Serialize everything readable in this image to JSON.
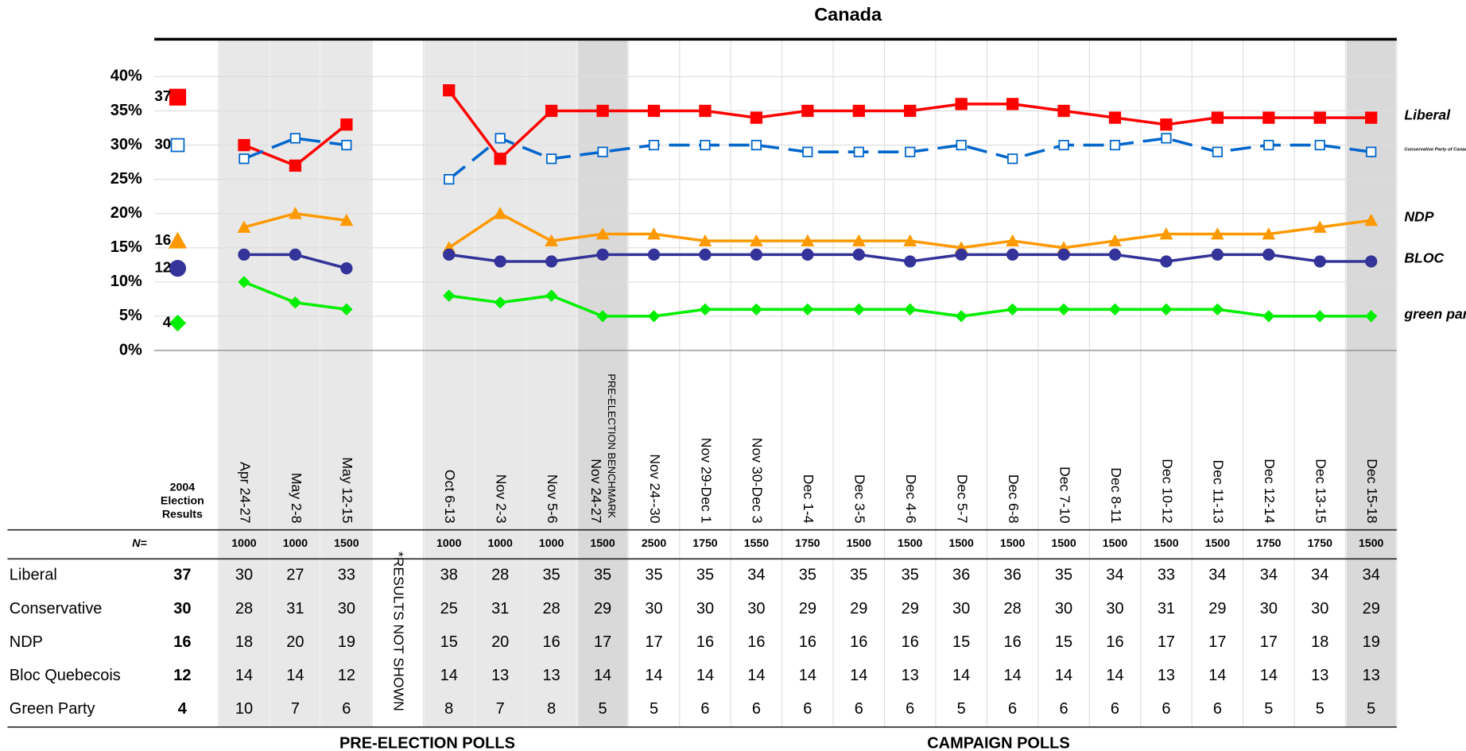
{
  "chart_data": {
    "type": "line",
    "title": "Canada",
    "categories": [
      "Apr 24-27",
      "May 2-8",
      "May 12-15",
      null,
      "Oct 6-13",
      "Nov 2-3",
      "Nov 5-6",
      "Nov 24-27",
      "Nov 24--30",
      "Nov 29-Dec 1",
      "Nov 30-Dec 3",
      "Dec 1-4",
      "Dec 3-5",
      "Dec 4-6",
      "Dec 5-7",
      "Dec 6-8",
      "Dec 7-10",
      "Dec 8-11",
      "Dec 10-12",
      "Dec 11-13",
      "Dec 12-14",
      "Dec 13-15",
      "Dec 15-18"
    ],
    "benchmark_note": "PRE-ELECTION BENCHMARK",
    "gap_note": "*RESULTS NOT SHOWN",
    "election_label": [
      "2004",
      "Election",
      "Results"
    ],
    "n_label": "N=",
    "n": [
      1000,
      1000,
      1500,
      null,
      1000,
      1000,
      1000,
      1500,
      2500,
      1750,
      1550,
      1750,
      1500,
      1500,
      1500,
      1500,
      1500,
      1500,
      1500,
      1500,
      1750,
      1750,
      1500
    ],
    "ylim": [
      0,
      40
    ],
    "yticks": [
      {
        "value": 0,
        "label": "0%"
      },
      {
        "value": 5,
        "label": "5%"
      },
      {
        "value": 10,
        "label": "10%"
      },
      {
        "value": 15,
        "label": "15%"
      },
      {
        "value": 20,
        "label": "20%"
      },
      {
        "value": 25,
        "label": "25%"
      },
      {
        "value": 30,
        "label": "30%"
      },
      {
        "value": 35,
        "label": "35%"
      },
      {
        "value": 40,
        "label": "40%"
      }
    ],
    "grid": true,
    "series": [
      {
        "name": "Liberal",
        "logo": "Liberal",
        "color": "#ff0000",
        "marker": "square",
        "dashed": false,
        "election": 37,
        "values": [
          30,
          27,
          33,
          null,
          38,
          28,
          35,
          35,
          35,
          35,
          34,
          35,
          35,
          35,
          36,
          36,
          35,
          34,
          33,
          34,
          34,
          34,
          34
        ]
      },
      {
        "name": "Conservative",
        "logo": "Conservative Party of Canada",
        "color": "#0066cc",
        "marker": "open-square",
        "dashed": true,
        "election": 30,
        "values": [
          28,
          31,
          30,
          null,
          25,
          31,
          28,
          29,
          30,
          30,
          30,
          29,
          29,
          29,
          30,
          28,
          30,
          30,
          31,
          29,
          30,
          30,
          29
        ]
      },
      {
        "name": "NDP",
        "logo": "NDP",
        "color": "#ff9900",
        "marker": "triangle",
        "dashed": false,
        "election": 16,
        "values": [
          18,
          20,
          19,
          null,
          15,
          20,
          16,
          17,
          17,
          16,
          16,
          16,
          16,
          16,
          15,
          16,
          15,
          16,
          17,
          17,
          17,
          18,
          19
        ]
      },
      {
        "name": "Bloc Quebecois",
        "logo": "BLOC",
        "color": "#333399",
        "marker": "circle",
        "dashed": false,
        "election": 12,
        "values": [
          14,
          14,
          12,
          null,
          14,
          13,
          13,
          14,
          14,
          14,
          14,
          14,
          14,
          13,
          14,
          14,
          14,
          14,
          13,
          14,
          14,
          13,
          13
        ]
      },
      {
        "name": "Green Party",
        "logo": "green party",
        "color": "#00ee00",
        "marker": "diamond",
        "dashed": false,
        "election": 4,
        "values": [
          10,
          7,
          6,
          null,
          8,
          7,
          8,
          5,
          5,
          6,
          6,
          6,
          6,
          6,
          5,
          6,
          6,
          6,
          6,
          6,
          5,
          5,
          5
        ]
      }
    ],
    "section_labels": [
      "PRE-ELECTION POLLS",
      "CAMPAIGN POLLS"
    ]
  }
}
